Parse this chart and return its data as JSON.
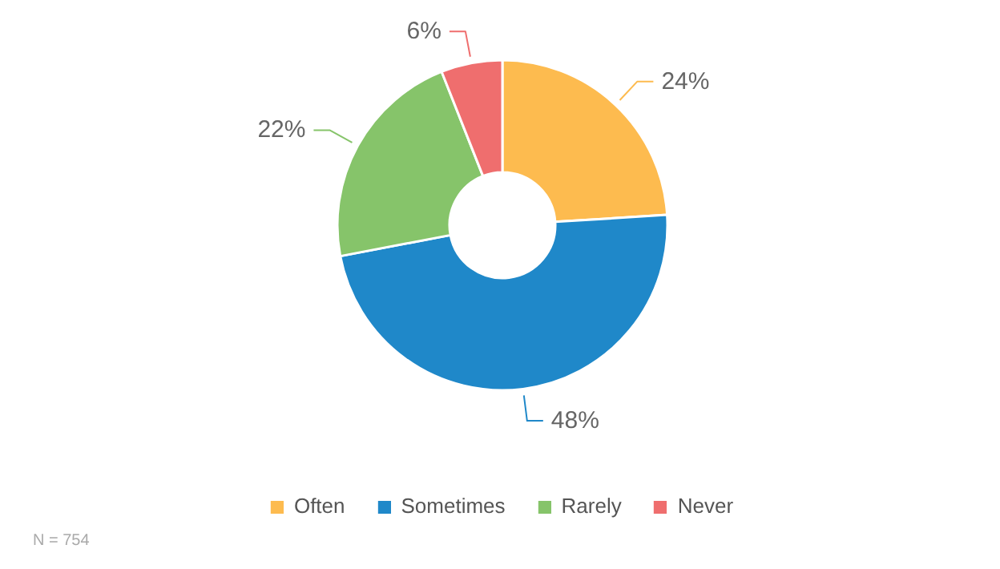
{
  "chart_data": {
    "type": "donut",
    "categories": [
      "Often",
      "Sometimes",
      "Rarely",
      "Never"
    ],
    "values": [
      24,
      48,
      22,
      6
    ],
    "colors": [
      "#fdbb4f",
      "#1f88c9",
      "#86c46a",
      "#ef6e6e"
    ],
    "value_labels": [
      "24%",
      "48%",
      "22%",
      "6%"
    ],
    "legend": "bottom",
    "annotations": [
      "N = 754"
    ]
  }
}
